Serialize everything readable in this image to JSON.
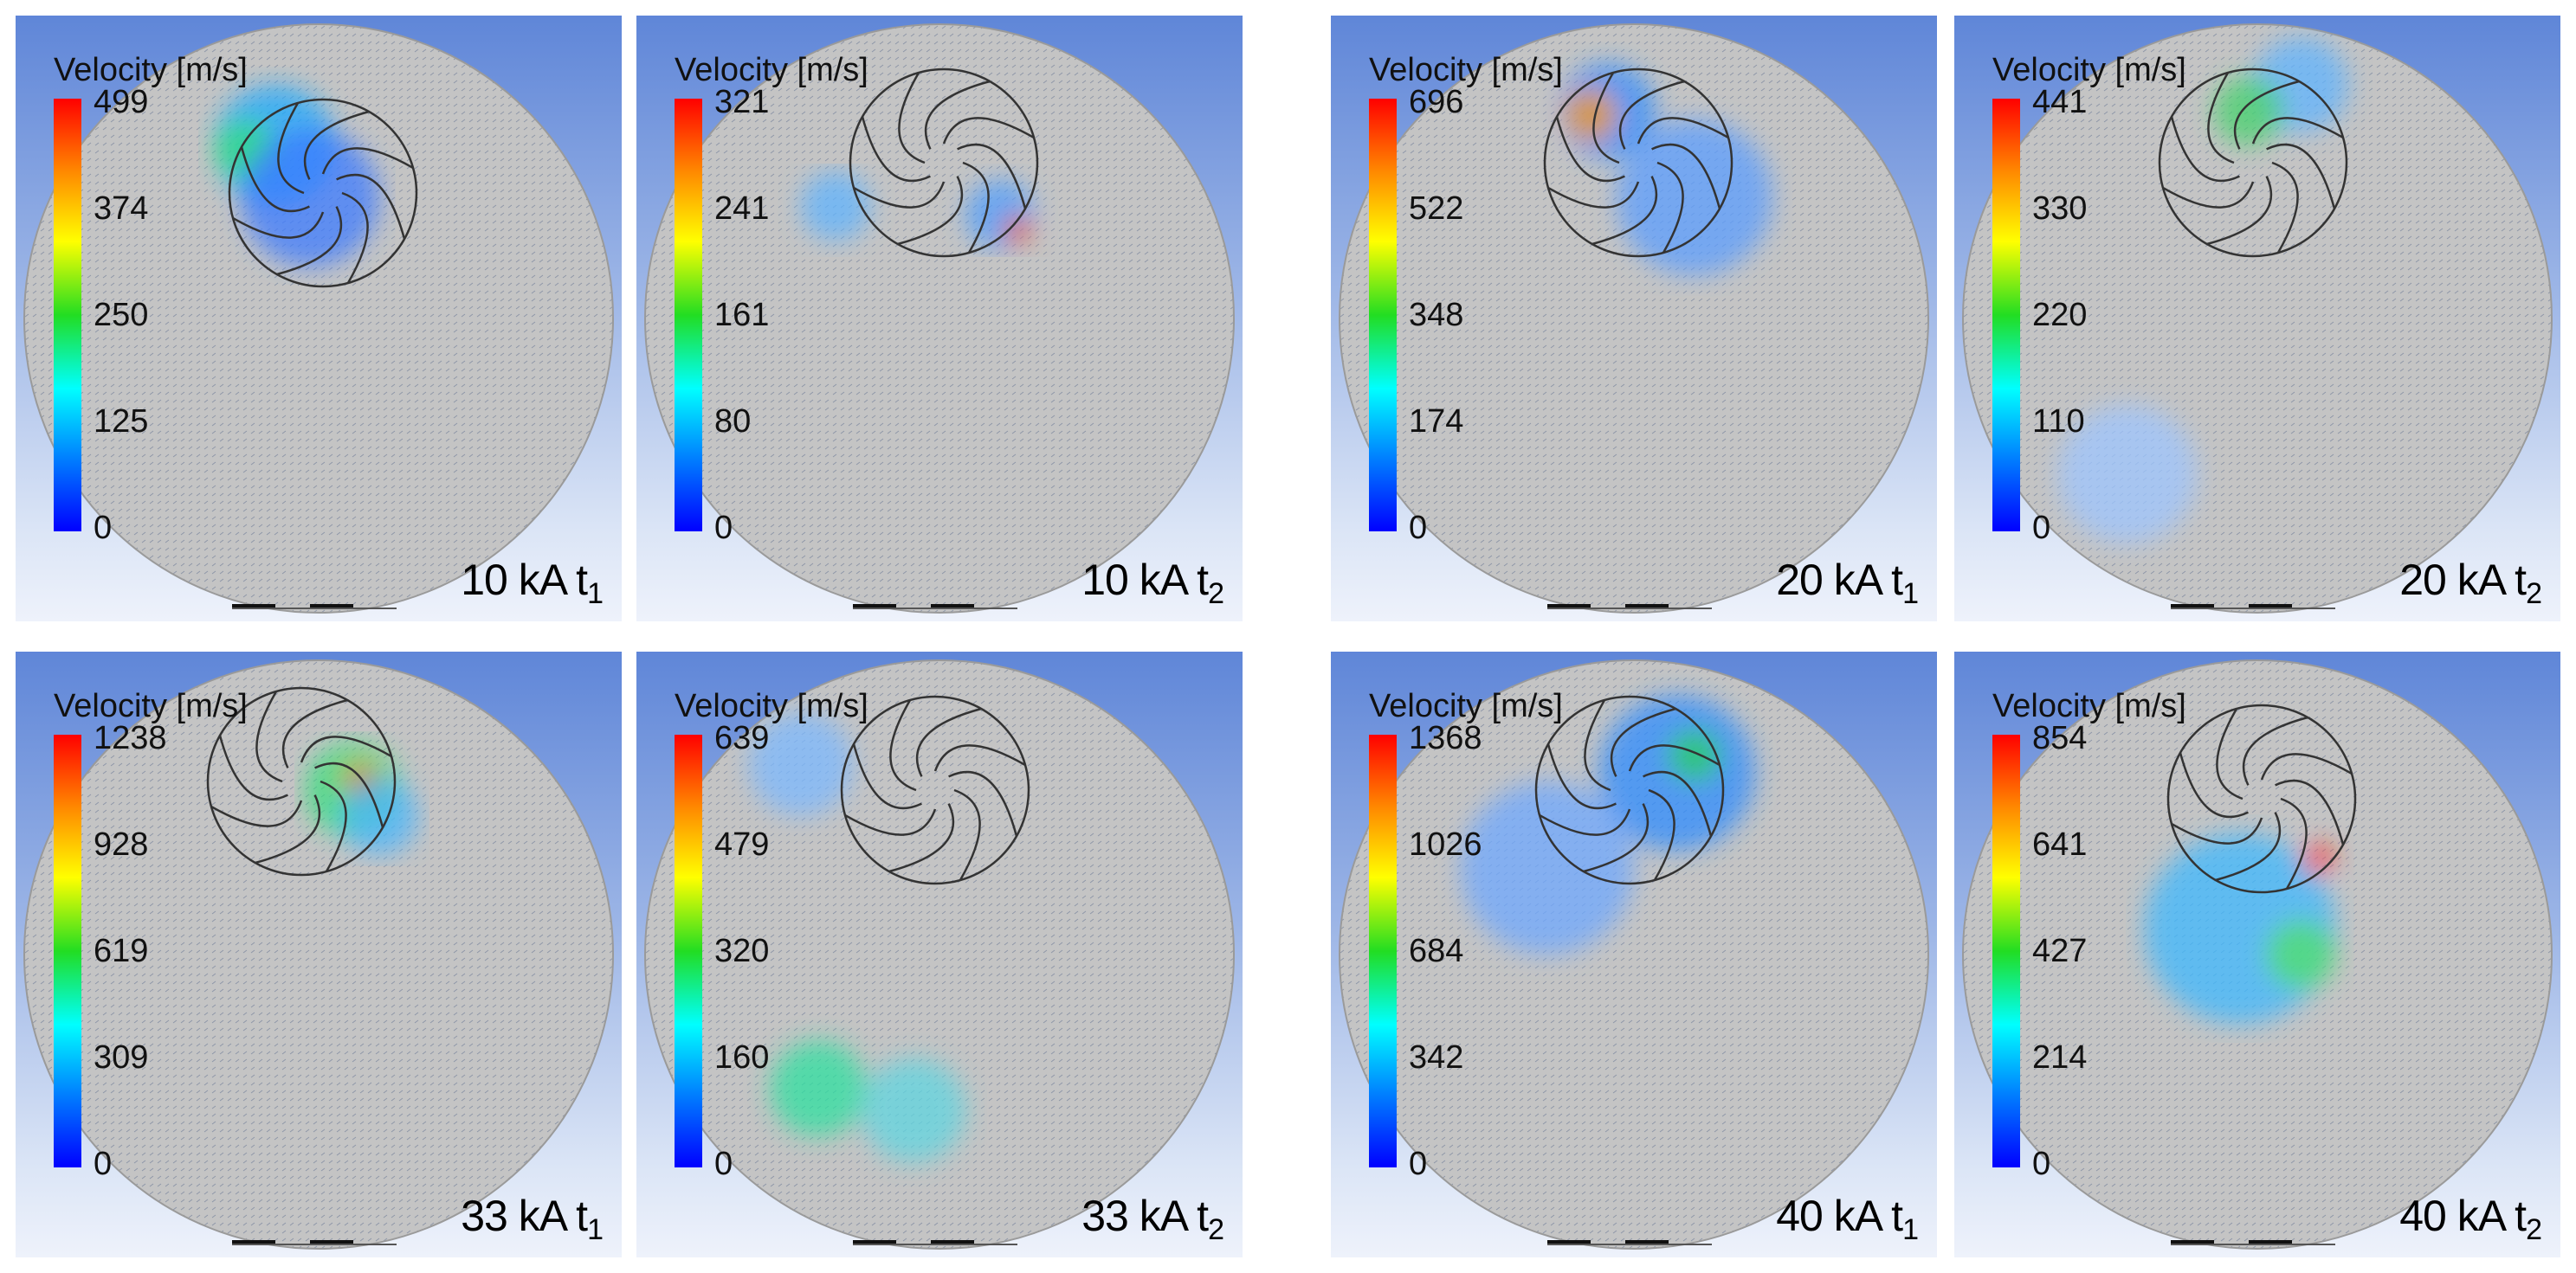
{
  "panels": [
    {
      "legend_title": "Velocity [m/s]",
      "ticks": [
        "499",
        "374",
        "250",
        "125",
        "0"
      ],
      "case": "10 kA t",
      "time": "1"
    },
    {
      "legend_title": "Velocity [m/s]",
      "ticks": [
        "321",
        "241",
        "161",
        "80",
        "0"
      ],
      "case": "10 kA t",
      "time": "2"
    },
    {
      "legend_title": "Velocity [m/s]",
      "ticks": [
        "696",
        "522",
        "348",
        "174",
        "0"
      ],
      "case": "20 kA t",
      "time": "1"
    },
    {
      "legend_title": "Velocity [m/s]",
      "ticks": [
        "441",
        "330",
        "220",
        "110",
        "0"
      ],
      "case": "20 kA t",
      "time": "2"
    },
    {
      "legend_title": "Velocity [m/s]",
      "ticks": [
        "1238",
        "928",
        "619",
        "309",
        "0"
      ],
      "case": "33 kA t",
      "time": "1"
    },
    {
      "legend_title": "Velocity [m/s]",
      "ticks": [
        "639",
        "479",
        "320",
        "160",
        "0"
      ],
      "case": "33 kA t",
      "time": "2"
    },
    {
      "legend_title": "Velocity [m/s]",
      "ticks": [
        "1368",
        "1026",
        "684",
        "342",
        "0"
      ],
      "case": "40 kA t",
      "time": "1"
    },
    {
      "legend_title": "Velocity [m/s]",
      "ticks": [
        "854",
        "641",
        "427",
        "214",
        "0"
      ],
      "case": "40 kA t",
      "time": "2"
    }
  ],
  "colors": {
    "colorbar_stops": [
      "#ff0000",
      "#ff8a00",
      "#ffff00",
      "#22dd22",
      "#00ffff",
      "#0080ff",
      "#0000ff"
    ],
    "domain_fill": "#c4c4c4",
    "background_top": "#5f86d8",
    "background_bottom": "#eef2fb"
  }
}
